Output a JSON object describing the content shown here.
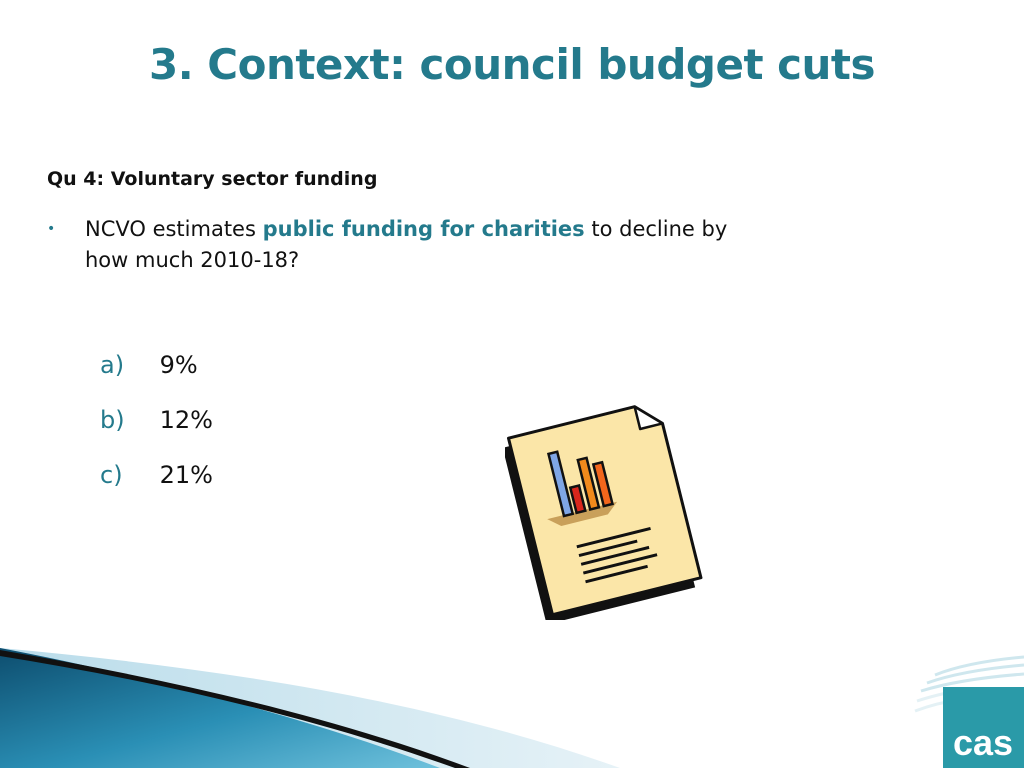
{
  "slide": {
    "title": "3. Context: council budget cuts",
    "question": "Qu 4: Voluntary sector funding",
    "bullet": {
      "marker": "•",
      "before": "NCVO estimates ",
      "highlight": "public funding for charities",
      "after": " to decline by how much 2010-18?"
    },
    "options": [
      {
        "letter": "a)",
        "text": "9%"
      },
      {
        "letter": "b)",
        "text": "12%"
      },
      {
        "letter": "c)",
        "text": "21%"
      }
    ],
    "logo": {
      "text": "cas"
    }
  },
  "icons": {
    "clipart": "chart-document-icon",
    "logo": "cas-logo"
  },
  "colors": {
    "accent": "#247a8c",
    "text": "#111111",
    "logo_box": "#2a9aa8"
  }
}
